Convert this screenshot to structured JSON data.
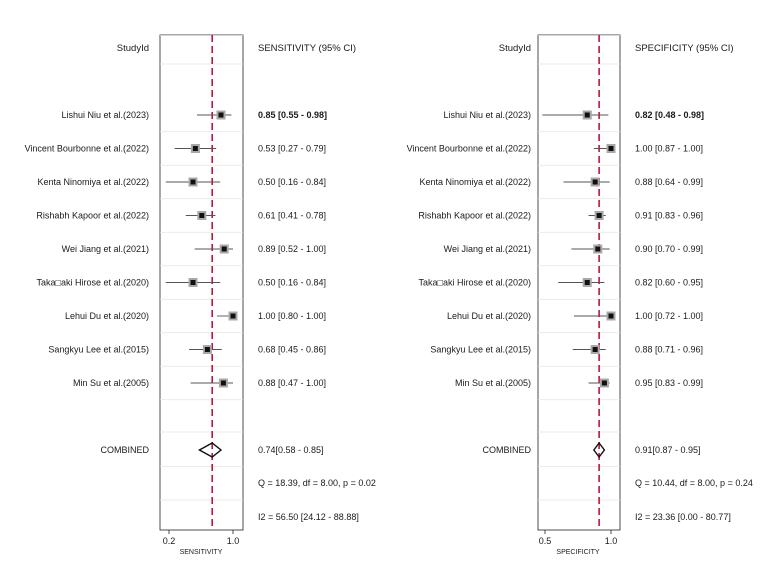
{
  "chart_data": [
    {
      "type": "forest",
      "study_header": "StudyId",
      "stat_header": "SENSITIVITY (95% CI)",
      "xlabel": "SENSITIVITY",
      "xlim": [
        0.1,
        1.03
      ],
      "xticks": [
        0.2,
        1.0
      ],
      "xtick_labels": [
        "0.2",
        "1.0"
      ],
      "reference_line": 0.74,
      "reference_color": "#c0143c",
      "studies": [
        {
          "label": "Lishui Niu et al.(2023)",
          "estimate": 0.85,
          "lower": 0.55,
          "upper": 0.98,
          "ci_text": "0.85 [0.55 - 0.98]"
        },
        {
          "label": "Vincent Bourbonne et al.(2022)",
          "estimate": 0.53,
          "lower": 0.27,
          "upper": 0.79,
          "ci_text": "0.53 [0.27 - 0.79]"
        },
        {
          "label": "Kenta Ninomiya et al.(2022)",
          "estimate": 0.5,
          "lower": 0.16,
          "upper": 0.84,
          "ci_text": "0.50 [0.16 - 0.84]"
        },
        {
          "label": "Rishabh Kapoor et al.(2022)",
          "estimate": 0.61,
          "lower": 0.41,
          "upper": 0.78,
          "ci_text": "0.61 [0.41 - 0.78]"
        },
        {
          "label": "Wei Jiang et al.(2021)",
          "estimate": 0.89,
          "lower": 0.52,
          "upper": 1.0,
          "ci_text": "0.89 [0.52 - 1.00]"
        },
        {
          "label": "Taka□aki Hirose et al.(2020)",
          "estimate": 0.5,
          "lower": 0.16,
          "upper": 0.84,
          "ci_text": "0.50 [0.16 - 0.84]"
        },
        {
          "label": "Lehui Du et al.(2020)",
          "estimate": 1.0,
          "lower": 0.8,
          "upper": 1.0,
          "ci_text": "1.00 [0.80 - 1.00]"
        },
        {
          "label": "Sangkyu Lee et al.(2015)",
          "estimate": 0.68,
          "lower": 0.45,
          "upper": 0.86,
          "ci_text": "0.68 [0.45 - 0.86]"
        },
        {
          "label": "Min Su et al.(2005)",
          "estimate": 0.88,
          "lower": 0.47,
          "upper": 1.0,
          "ci_text": "0.88 [0.47 - 1.00]"
        }
      ],
      "combined": {
        "label": "COMBINED",
        "estimate": 0.74,
        "lower": 0.58,
        "upper": 0.85,
        "ci_text": "0.74[0.58 - 0.85]"
      },
      "heterogeneity_q": "Q = 18.39, df = 8.00, p =  0.02",
      "heterogeneity_i2": "I2 = 56.50 [24.12 - 88.88]"
    },
    {
      "type": "forest",
      "study_header": "StudyId",
      "stat_header": "SPECIFICITY (95% CI)",
      "xlabel": "SPECIFICITY",
      "xlim": [
        0.45,
        1.03
      ],
      "xticks": [
        0.5,
        1.0
      ],
      "xtick_labels": [
        "0.5",
        "1.0"
      ],
      "reference_line": 0.91,
      "reference_color": "#c0143c",
      "studies": [
        {
          "label": "Lishui Niu et al.(2023)",
          "estimate": 0.82,
          "lower": 0.48,
          "upper": 0.98,
          "ci_text": "0.82 [0.48 - 0.98]"
        },
        {
          "label": "Vincent Bourbonne et al.(2022)",
          "estimate": 1.0,
          "lower": 0.87,
          "upper": 1.0,
          "ci_text": "1.00 [0.87 - 1.00]"
        },
        {
          "label": "Kenta Ninomiya et al.(2022)",
          "estimate": 0.88,
          "lower": 0.64,
          "upper": 0.99,
          "ci_text": "0.88 [0.64 - 0.99]"
        },
        {
          "label": "Rishabh Kapoor et al.(2022)",
          "estimate": 0.91,
          "lower": 0.83,
          "upper": 0.96,
          "ci_text": "0.91 [0.83 - 0.96]"
        },
        {
          "label": "Wei Jiang et al.(2021)",
          "estimate": 0.9,
          "lower": 0.7,
          "upper": 0.99,
          "ci_text": "0.90 [0.70 - 0.99]"
        },
        {
          "label": "Taka□aki Hirose et al.(2020)",
          "estimate": 0.82,
          "lower": 0.6,
          "upper": 0.95,
          "ci_text": "0.82 [0.60 - 0.95]"
        },
        {
          "label": "Lehui Du et al.(2020)",
          "estimate": 1.0,
          "lower": 0.72,
          "upper": 1.0,
          "ci_text": "1.00 [0.72 - 1.00]"
        },
        {
          "label": "Sangkyu Lee et al.(2015)",
          "estimate": 0.88,
          "lower": 0.71,
          "upper": 0.96,
          "ci_text": "0.88 [0.71 - 0.96]"
        },
        {
          "label": "Min Su et al.(2005)",
          "estimate": 0.95,
          "lower": 0.83,
          "upper": 0.99,
          "ci_text": "0.95 [0.83 - 0.99]"
        }
      ],
      "combined": {
        "label": "COMBINED",
        "estimate": 0.91,
        "lower": 0.87,
        "upper": 0.95,
        "ci_text": "0.91[0.87 - 0.95]"
      },
      "heterogeneity_q": "Q = 10.44, df = 8.00, p =  0.24",
      "heterogeneity_i2": "I2 = 23.36 [0.00 - 80.77]"
    }
  ]
}
